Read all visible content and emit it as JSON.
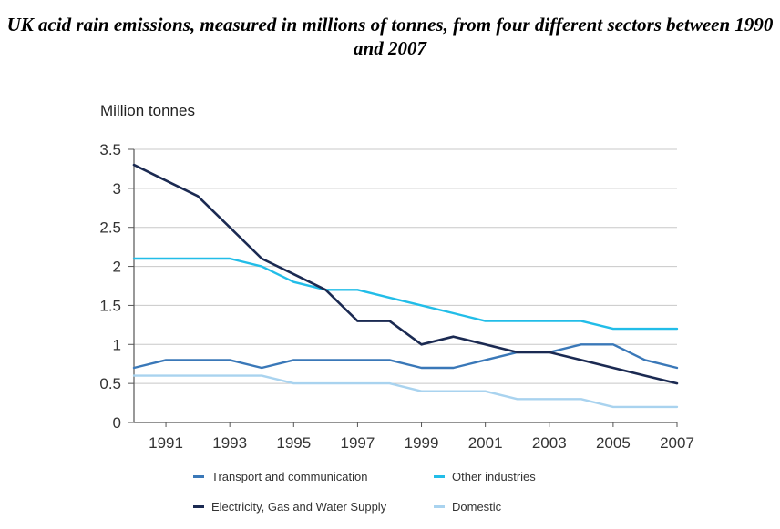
{
  "chart_data": {
    "type": "line",
    "title": "UK acid rain emissions, measured in millions of tonnes, from four different sectors between 1990 and 2007",
    "ylabel": "Million tonnes",
    "xlabel": "",
    "ylim": [
      0,
      3.5
    ],
    "xlim": [
      1990,
      2007
    ],
    "yticks": [
      "0",
      "0.5",
      "1",
      "1.5",
      "2",
      "2.5",
      "3",
      "3.5"
    ],
    "xticks": [
      "1991",
      "1993",
      "1995",
      "1997",
      "1999",
      "2001",
      "2003",
      "2005",
      "2007"
    ],
    "grid": true,
    "legend_position": "bottom",
    "x": [
      1990,
      1991,
      1992,
      1993,
      1994,
      1995,
      1996,
      1997,
      1998,
      1999,
      2000,
      2001,
      2002,
      2003,
      2004,
      2005,
      2006,
      2007
    ],
    "series": [
      {
        "name": "Transport and communication",
        "color": "#3a78b8",
        "values": [
          0.7,
          0.8,
          0.8,
          0.8,
          0.7,
          0.8,
          0.8,
          0.8,
          0.8,
          0.7,
          0.7,
          0.8,
          0.9,
          0.9,
          1.0,
          1.0,
          0.8,
          0.7
        ]
      },
      {
        "name": "Other industries",
        "color": "#22bde8",
        "values": [
          2.1,
          2.1,
          2.1,
          2.1,
          2.0,
          1.8,
          1.7,
          1.7,
          1.6,
          1.5,
          1.4,
          1.3,
          1.3,
          1.3,
          1.3,
          1.2,
          1.2,
          1.2
        ]
      },
      {
        "name": "Electricity, Gas and Water Supply",
        "color": "#1b2a52",
        "values": [
          3.3,
          3.1,
          2.9,
          2.5,
          2.1,
          1.9,
          1.7,
          1.3,
          1.3,
          1.0,
          1.1,
          1.0,
          0.9,
          0.9,
          0.8,
          0.7,
          0.6,
          0.5
        ]
      },
      {
        "name": "Domestic",
        "color": "#a9d3ef",
        "values": [
          0.6,
          0.6,
          0.6,
          0.6,
          0.6,
          0.5,
          0.5,
          0.5,
          0.5,
          0.4,
          0.4,
          0.4,
          0.3,
          0.3,
          0.3,
          0.2,
          0.2,
          0.2
        ]
      }
    ]
  }
}
